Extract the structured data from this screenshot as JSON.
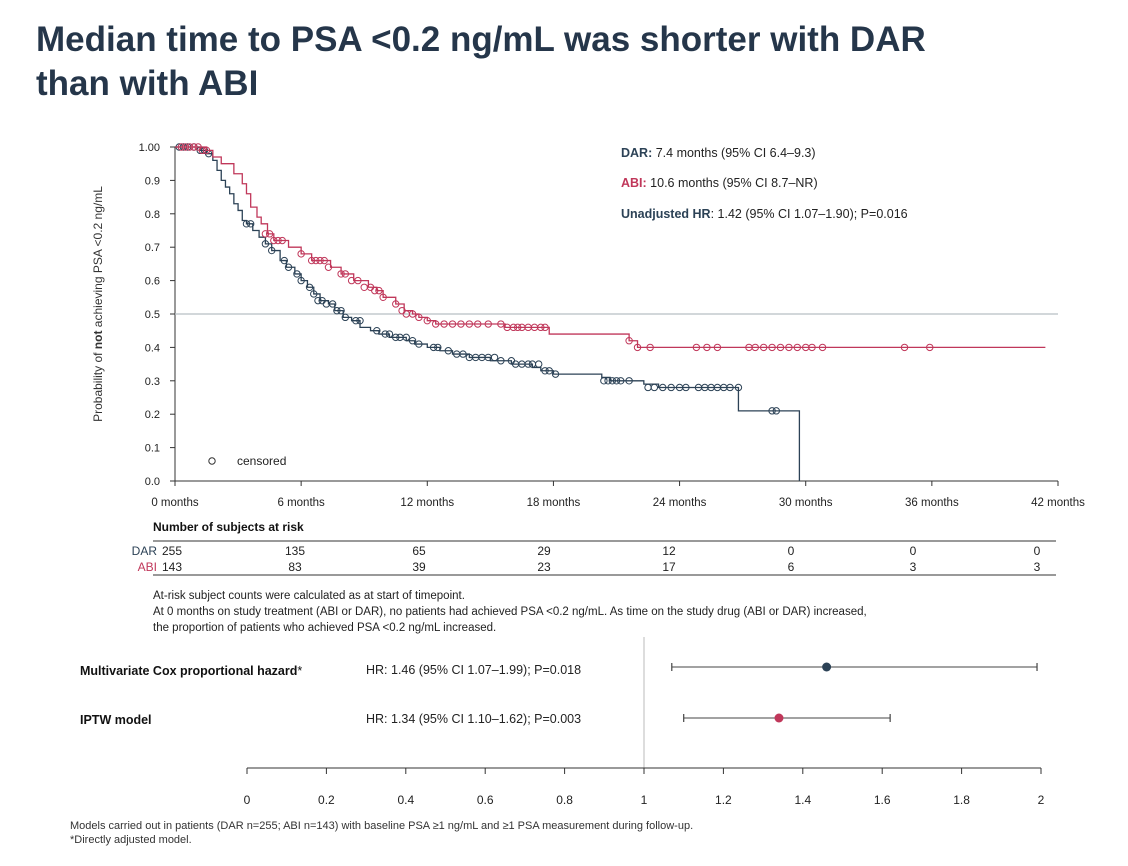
{
  "title": {
    "line1": "Median time to PSA <0.2 ng/mL was shorter with DAR",
    "line2": "than with ABI"
  },
  "colors": {
    "dar": "#2c4256",
    "abi": "#c0375a",
    "median_line": "#b8bfc4",
    "axis": "#333333"
  },
  "chart_data": [
    {
      "type": "line",
      "subtype": "kaplan-meier",
      "ylabel_parts": [
        "Probability of ",
        "not",
        " achieving PSA <0.2 ng/mL"
      ],
      "xlim": [
        0,
        42
      ],
      "ylim": [
        0,
        1
      ],
      "x_ticks": [
        0,
        6,
        12,
        18,
        24,
        30,
        36,
        42
      ],
      "x_tick_labels": [
        "0 months",
        "6 months",
        "12 months",
        "18 months",
        "24 months",
        "30 months",
        "36 months",
        "42 months"
      ],
      "y_ticks": [
        0,
        0.1,
        0.2,
        0.3,
        0.4,
        0.5,
        0.6,
        0.7,
        0.8,
        0.9,
        1.0
      ],
      "y_tick_labels": [
        "0.0",
        "0.1",
        "0.2",
        "0.3",
        "0.4",
        "0.5",
        "0.6",
        "0.7",
        "0.8",
        "0.9",
        "1.00"
      ],
      "reference_line_y": 0.5,
      "censored_legend": "censored",
      "annotations": [
        {
          "series": "DAR",
          "label": "DAR:",
          "text": " 7.4 months (95% CI 6.4–9.3)"
        },
        {
          "series": "ABI",
          "label": "ABI:",
          "text": " 10.6 months (95% CI 8.7–NR)"
        },
        {
          "series": "HR",
          "label": "Unadjusted HR",
          "text": ": 1.42 (95% CI 1.07–1.90); P=0.016"
        }
      ],
      "series": [
        {
          "name": "DAR",
          "steps": [
            [
              0,
              1.0
            ],
            [
              0.8,
              1.0
            ],
            [
              1.2,
              0.99
            ],
            [
              1.5,
              0.98
            ],
            [
              1.8,
              0.96
            ],
            [
              2.0,
              0.93
            ],
            [
              2.2,
              0.9
            ],
            [
              2.4,
              0.88
            ],
            [
              2.6,
              0.86
            ],
            [
              2.8,
              0.83
            ],
            [
              3.0,
              0.81
            ],
            [
              3.2,
              0.78
            ],
            [
              3.4,
              0.77
            ],
            [
              3.7,
              0.75
            ],
            [
              4.0,
              0.73
            ],
            [
              4.3,
              0.71
            ],
            [
              4.6,
              0.69
            ],
            [
              5.0,
              0.66
            ],
            [
              5.3,
              0.64
            ],
            [
              5.7,
              0.62
            ],
            [
              6.0,
              0.6
            ],
            [
              6.3,
              0.58
            ],
            [
              6.6,
              0.56
            ],
            [
              6.9,
              0.54
            ],
            [
              7.3,
              0.53
            ],
            [
              7.6,
              0.51
            ],
            [
              8.0,
              0.49
            ],
            [
              8.4,
              0.48
            ],
            [
              8.8,
              0.46
            ],
            [
              9.3,
              0.45
            ],
            [
              9.7,
              0.44
            ],
            [
              10.2,
              0.43
            ],
            [
              11.0,
              0.42
            ],
            [
              11.4,
              0.41
            ],
            [
              12.0,
              0.4
            ],
            [
              12.6,
              0.39
            ],
            [
              13.2,
              0.38
            ],
            [
              14.0,
              0.37
            ],
            [
              15.0,
              0.36
            ],
            [
              16.0,
              0.35
            ],
            [
              17.0,
              0.34
            ],
            [
              17.4,
              0.33
            ],
            [
              18.0,
              0.32
            ],
            [
              19.5,
              0.32
            ],
            [
              20.3,
              0.31
            ],
            [
              20.7,
              0.3
            ],
            [
              22.3,
              0.29
            ],
            [
              23.0,
              0.28
            ],
            [
              26.8,
              0.28
            ],
            [
              26.8,
              0.21
            ],
            [
              29.7,
              0.21
            ],
            [
              29.7,
              0.0
            ]
          ],
          "censored_x": [
            0.2,
            0.4,
            0.6,
            0.9,
            1.2,
            1.4,
            1.6,
            3.4,
            3.6,
            4.3,
            4.6,
            5.2,
            5.4,
            5.8,
            6.0,
            6.4,
            6.6,
            6.8,
            7.0,
            7.2,
            7.5,
            7.7,
            7.9,
            8.1,
            8.6,
            8.8,
            9.6,
            10.0,
            10.2,
            10.5,
            10.7,
            11.0,
            11.3,
            11.6,
            12.3,
            12.5,
            13.0,
            13.4,
            13.7,
            14.0,
            14.3,
            14.6,
            14.9,
            15.2,
            15.5,
            16.0,
            16.2,
            16.5,
            16.8,
            17.0,
            17.3,
            17.6,
            17.8,
            18.1,
            20.4,
            20.6,
            20.8,
            21.0,
            21.2,
            21.6,
            22.5,
            22.8,
            23.2,
            23.6,
            24.0,
            24.3,
            24.9,
            25.2,
            25.5,
            25.8,
            26.1,
            26.4,
            26.8,
            28.4,
            28.6
          ],
          "censored_y": [
            1.0,
            1.0,
            1.0,
            1.0,
            0.99,
            0.99,
            0.98,
            0.77,
            0.77,
            0.71,
            0.69,
            0.66,
            0.64,
            0.62,
            0.6,
            0.58,
            0.56,
            0.54,
            0.54,
            0.53,
            0.53,
            0.51,
            0.51,
            0.49,
            0.48,
            0.48,
            0.45,
            0.44,
            0.44,
            0.43,
            0.43,
            0.43,
            0.42,
            0.41,
            0.4,
            0.4,
            0.39,
            0.38,
            0.38,
            0.37,
            0.37,
            0.37,
            0.37,
            0.37,
            0.36,
            0.36,
            0.35,
            0.35,
            0.35,
            0.35,
            0.35,
            0.33,
            0.33,
            0.32,
            0.3,
            0.3,
            0.3,
            0.3,
            0.3,
            0.3,
            0.28,
            0.28,
            0.28,
            0.28,
            0.28,
            0.28,
            0.28,
            0.28,
            0.28,
            0.28,
            0.28,
            0.28,
            0.28,
            0.21,
            0.21
          ]
        },
        {
          "name": "ABI",
          "steps": [
            [
              0,
              1.0
            ],
            [
              1.0,
              1.0
            ],
            [
              1.5,
              0.99
            ],
            [
              1.8,
              0.97
            ],
            [
              2.2,
              0.95
            ],
            [
              2.8,
              0.92
            ],
            [
              3.2,
              0.89
            ],
            [
              3.4,
              0.86
            ],
            [
              3.6,
              0.82
            ],
            [
              3.9,
              0.79
            ],
            [
              4.1,
              0.77
            ],
            [
              4.4,
              0.74
            ],
            [
              4.7,
              0.72
            ],
            [
              5.4,
              0.7
            ],
            [
              6.0,
              0.68
            ],
            [
              6.5,
              0.66
            ],
            [
              7.4,
              0.64
            ],
            [
              7.9,
              0.62
            ],
            [
              8.5,
              0.6
            ],
            [
              9.2,
              0.58
            ],
            [
              9.6,
              0.57
            ],
            [
              9.9,
              0.55
            ],
            [
              10.5,
              0.53
            ],
            [
              10.9,
              0.51
            ],
            [
              11.3,
              0.5
            ],
            [
              11.6,
              0.49
            ],
            [
              12.0,
              0.48
            ],
            [
              12.4,
              0.47
            ],
            [
              15.6,
              0.47
            ],
            [
              15.7,
              0.46
            ],
            [
              17.8,
              0.46
            ],
            [
              17.8,
              0.44
            ],
            [
              20.0,
              0.44
            ],
            [
              21.6,
              0.42
            ],
            [
              22.0,
              0.4
            ],
            [
              41.4,
              0.4
            ]
          ],
          "censored_x": [
            0.3,
            0.5,
            0.7,
            0.9,
            1.1,
            1.3,
            1.5,
            4.3,
            4.5,
            4.7,
            4.9,
            5.1,
            6.0,
            6.5,
            6.7,
            6.9,
            7.1,
            7.3,
            7.9,
            8.1,
            8.4,
            8.7,
            9.0,
            9.3,
            9.5,
            9.7,
            9.9,
            10.5,
            10.8,
            11.0,
            11.3,
            11.6,
            12.0,
            12.4,
            12.8,
            13.2,
            13.6,
            14.0,
            14.4,
            14.9,
            15.5,
            15.8,
            16.1,
            16.3,
            16.5,
            16.8,
            17.1,
            17.4,
            17.6,
            21.6,
            22.0,
            22.6,
            24.8,
            25.3,
            25.8,
            27.3,
            27.6,
            28.0,
            28.4,
            28.8,
            29.2,
            29.6,
            30.0,
            30.3,
            30.8,
            34.7,
            35.9
          ],
          "censored_y": [
            1.0,
            1.0,
            1.0,
            1.0,
            1.0,
            0.99,
            0.99,
            0.74,
            0.74,
            0.72,
            0.72,
            0.72,
            0.68,
            0.66,
            0.66,
            0.66,
            0.66,
            0.64,
            0.62,
            0.62,
            0.6,
            0.6,
            0.58,
            0.58,
            0.57,
            0.57,
            0.55,
            0.53,
            0.51,
            0.5,
            0.5,
            0.49,
            0.48,
            0.47,
            0.47,
            0.47,
            0.47,
            0.47,
            0.47,
            0.47,
            0.47,
            0.46,
            0.46,
            0.46,
            0.46,
            0.46,
            0.46,
            0.46,
            0.46,
            0.42,
            0.4,
            0.4,
            0.4,
            0.4,
            0.4,
            0.4,
            0.4,
            0.4,
            0.4,
            0.4,
            0.4,
            0.4,
            0.4,
            0.4,
            0.4,
            0.4,
            0.4
          ]
        }
      ]
    },
    {
      "type": "table",
      "title": "Number of subjects at risk",
      "columns_x": [
        0,
        6,
        12,
        18,
        24,
        30,
        36,
        42
      ],
      "rows": [
        {
          "name": "DAR",
          "values": [
            "255",
            "135",
            "65",
            "29",
            "12",
            "0",
            "0",
            "0"
          ]
        },
        {
          "name": "ABI",
          "values": [
            "143",
            "83",
            "39",
            "23",
            "17",
            "6",
            "3",
            "3"
          ]
        }
      ]
    },
    {
      "type": "scatter",
      "subtype": "forest",
      "xlim": [
        0,
        2
      ],
      "x_ticks": [
        0,
        0.2,
        0.4,
        0.6,
        0.8,
        1,
        1.2,
        1.4,
        1.6,
        1.8,
        2
      ],
      "x_tick_labels": [
        "0",
        "0.2",
        "0.4",
        "0.6",
        "0.8",
        "1",
        "1.2",
        "1.4",
        "1.6",
        "1.8",
        "2"
      ],
      "reference_x": 1,
      "rows": [
        {
          "label": "Multivariate Cox proportional hazard",
          "label_suffix": "*",
          "hr_text": "HR: 1.46 (95% CI 1.07–1.99); P=0.018",
          "hr": 1.46,
          "lo": 1.07,
          "hi": 1.99,
          "color_key": "dar"
        },
        {
          "label": "IPTW model",
          "label_suffix": "",
          "hr_text": "HR: 1.34 (95% CI 1.10–1.62); P=0.003",
          "hr": 1.34,
          "lo": 1.1,
          "hi": 1.62,
          "color_key": "abi"
        }
      ]
    }
  ],
  "notes": {
    "line1": "At-risk subject counts were calculated as at start of timepoint.",
    "line2": "At 0 months on study treatment (ABI or DAR), no patients had achieved PSA <0.2 ng/mL. As time on the study drug (ABI or DAR) increased,",
    "line3": "the proportion of patients who achieved PSA <0.2 ng/mL increased."
  },
  "footnotes": {
    "line1": "Models carried out in patients (DAR n=255; ABI n=143) with baseline PSA ≥1 ng/mL and ≥1 PSA measurement during follow-up.",
    "line2": "*Directly adjusted model."
  }
}
